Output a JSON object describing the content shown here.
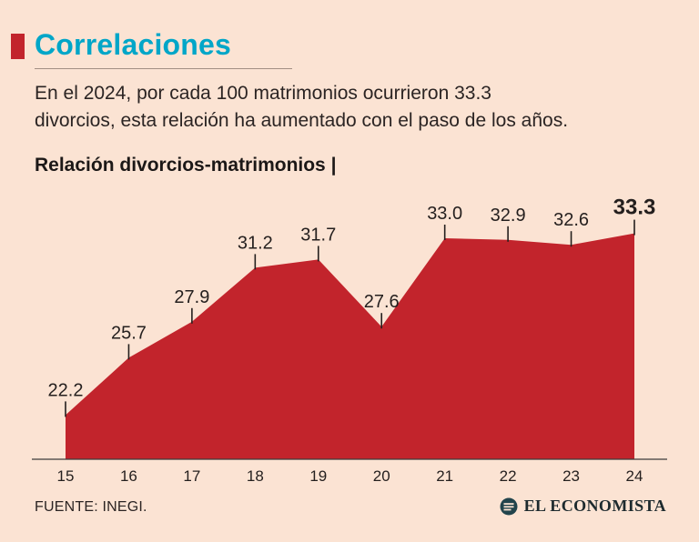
{
  "page": {
    "title": "Correlaciones",
    "subtitle": {
      "lines": [
        "En el 2024, por cada 100 matrimonios ocurrieron 33.3",
        "divorcios, esta relación ha aumentado con el paso de los años."
      ]
    },
    "chart_label": "Relación divorcios-matrimonios |",
    "source": "FUENTE: INEGI.",
    "brand": "EL ECONOMISTA"
  },
  "colors": {
    "background": "#fbe3d3",
    "accent_red": "#c2242c",
    "title_cyan": "#00a6c8",
    "text": "#241f1e",
    "axis": "#3c3c3c",
    "logo_circle": "#22444c"
  },
  "chart_data": {
    "type": "area",
    "title": "Relación divorcios-matrimonios",
    "categories": [
      "15",
      "16",
      "17",
      "18",
      "19",
      "20",
      "21",
      "22",
      "23",
      "24"
    ],
    "values": [
      22.2,
      25.7,
      27.9,
      31.2,
      31.7,
      27.6,
      33.0,
      32.9,
      32.6,
      33.3
    ],
    "xlabel": "",
    "ylabel": "",
    "ylim": [
      19.5,
      35.5
    ],
    "grid": false,
    "legend": "none",
    "value_labels": true,
    "highlight_last": true
  }
}
